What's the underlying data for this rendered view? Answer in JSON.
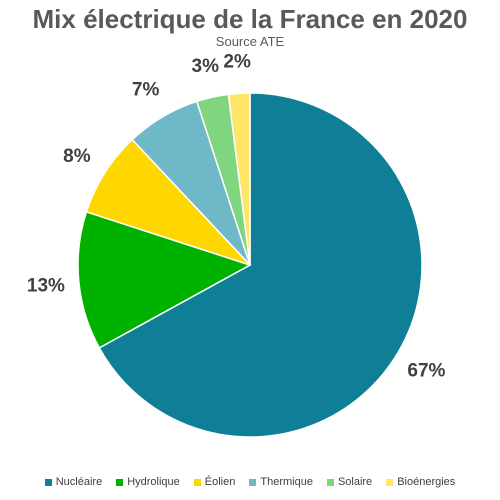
{
  "chart_data": {
    "type": "pie",
    "title": "Mix électrique de la France en 2020",
    "subtitle": "Source ATE",
    "slices": [
      {
        "label": "Nucléaire",
        "value": 67,
        "value_label": "67%",
        "color": "#0E7F96"
      },
      {
        "label": "Hydrolique",
        "value": 13,
        "value_label": "13%",
        "color": "#00B200"
      },
      {
        "label": "Éolien",
        "value": 8,
        "value_label": "8%",
        "color": "#FFD700"
      },
      {
        "label": "Thermique",
        "value": 7,
        "value_label": "7%",
        "color": "#6FB8C8"
      },
      {
        "label": "Solaire",
        "value": 3,
        "value_label": "3%",
        "color": "#7FD67F"
      },
      {
        "label": "Bioénergies",
        "value": 2,
        "value_label": "2%",
        "color": "#FFE667"
      }
    ],
    "legend_position": "bottom"
  }
}
